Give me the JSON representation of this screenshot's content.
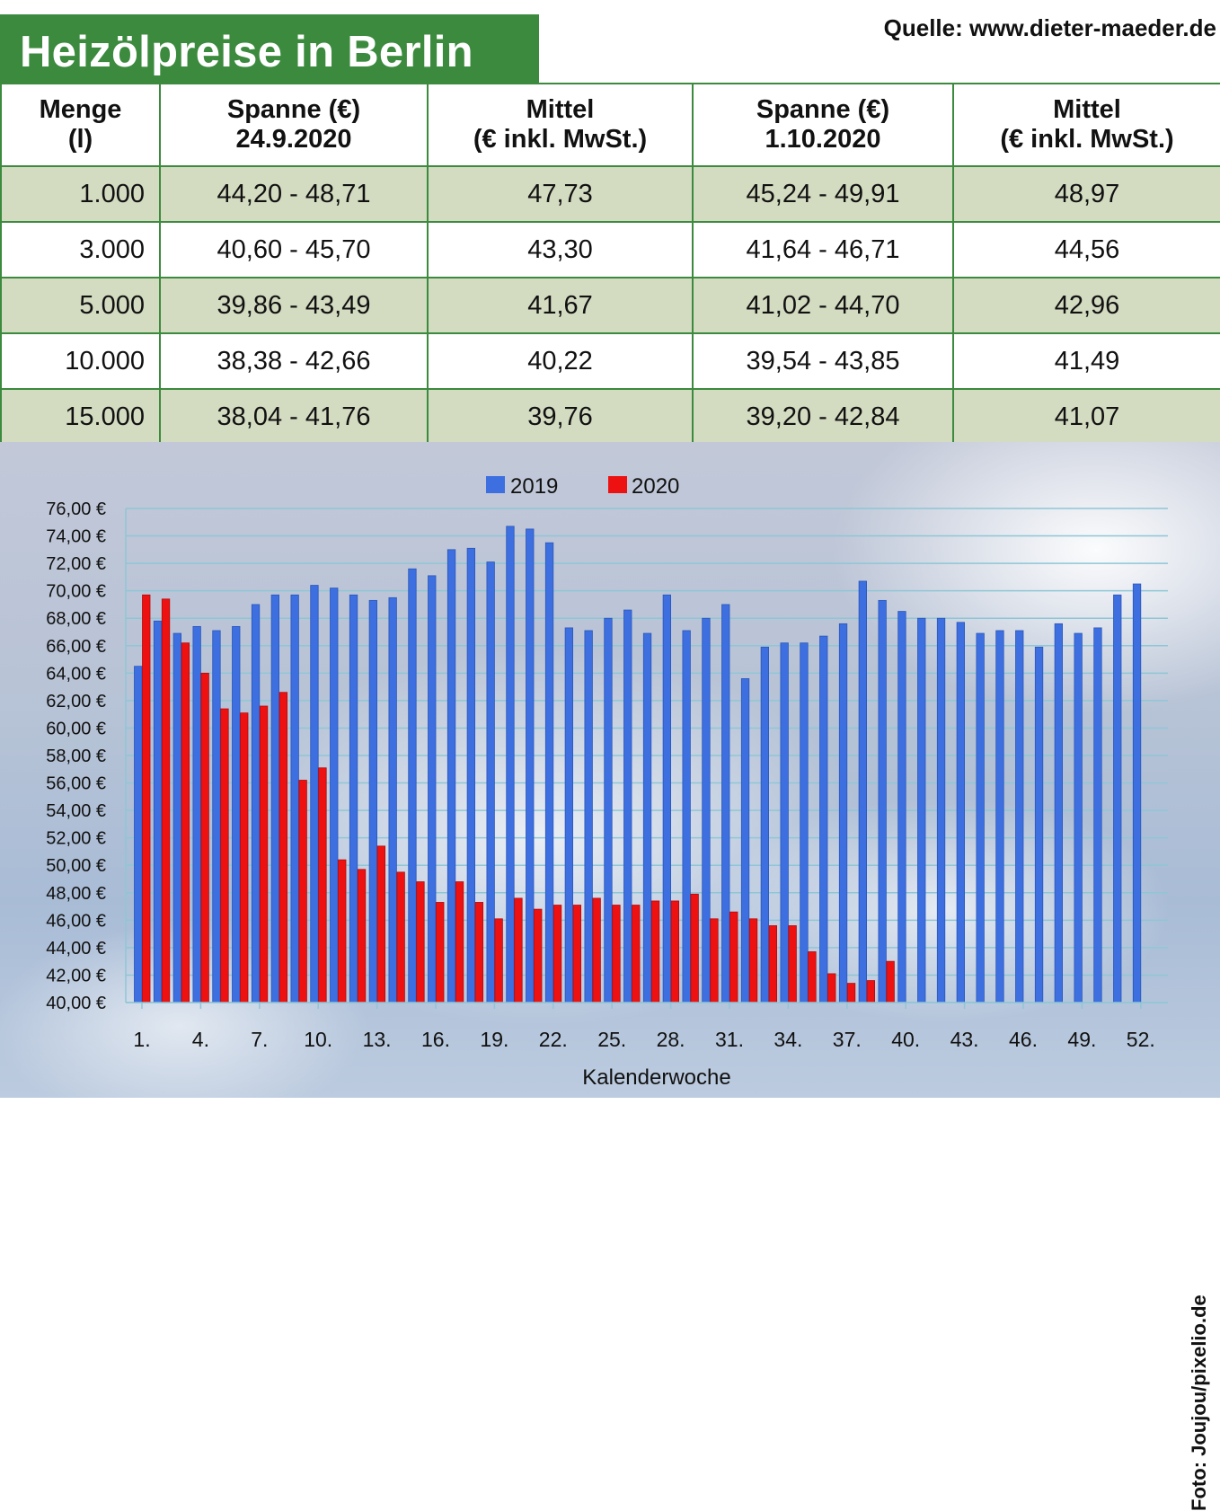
{
  "title": "Heizölpreise in Berlin",
  "source": "Quelle: www.dieter-maeder.de",
  "credit": "Foto: Joujou/pixelio.de",
  "table": {
    "headers": [
      [
        "Menge",
        "(l)"
      ],
      [
        "Spanne (€)",
        "24.9.2020"
      ],
      [
        "Mittel",
        "(€ inkl. MwSt.)"
      ],
      [
        "Spanne (€)",
        "1.10.2020"
      ],
      [
        "Mittel",
        "(€ inkl. MwSt.)"
      ]
    ],
    "rows": [
      [
        "1.000",
        "44,20 - 48,71",
        "47,73",
        "45,24 - 49,91",
        "48,97"
      ],
      [
        "3.000",
        "40,60 - 45,70",
        "43,30",
        "41,64 - 46,71",
        "44,56"
      ],
      [
        "5.000",
        "39,86 - 43,49",
        "41,67",
        "41,02 - 44,70",
        "42,96"
      ],
      [
        "10.000",
        "38,38 - 42,66",
        "40,22",
        "39,54 - 43,85",
        "41,49"
      ],
      [
        "15.000",
        "38,04 - 41,76",
        "39,76",
        "39,20 - 42,84",
        "41,07"
      ]
    ]
  },
  "colors": {
    "brand_green": "#3b8a3e",
    "row_shade": "#d3dbc1",
    "series_2019": "#3d6fe0",
    "series_2020": "#ee1111"
  },
  "chart_data": {
    "type": "bar",
    "xlabel": "Kalenderwoche",
    "ylabel": "",
    "ylim": [
      40,
      76
    ],
    "y_tick_step": 2,
    "y_tick_suffix": " €",
    "x_tick_labels": [
      "1.",
      "4.",
      "7.",
      "10.",
      "13.",
      "16.",
      "19.",
      "22.",
      "25.",
      "28.",
      "31.",
      "34.",
      "37.",
      "40.",
      "43.",
      "46.",
      "49.",
      "52."
    ],
    "x_tick_weeks": [
      1,
      4,
      7,
      10,
      13,
      16,
      19,
      22,
      25,
      28,
      31,
      34,
      37,
      40,
      43,
      46,
      49,
      52
    ],
    "legend_position": "top-center",
    "grid": true,
    "series": [
      {
        "name": "2019",
        "values": [
          64.5,
          67.8,
          66.9,
          67.4,
          67.1,
          67.4,
          69.0,
          69.7,
          69.7,
          70.4,
          70.2,
          69.7,
          69.3,
          69.5,
          71.6,
          71.1,
          73.0,
          73.1,
          72.1,
          74.7,
          74.5,
          73.5,
          67.3,
          67.1,
          68.0,
          68.6,
          66.9,
          69.7,
          67.1,
          68.0,
          69.0,
          63.6,
          65.9,
          66.2,
          66.2,
          66.7,
          67.6,
          70.7,
          69.3,
          68.5,
          68.0,
          68.0,
          67.7,
          66.9,
          67.1,
          67.1,
          65.9,
          67.6,
          66.9,
          67.3,
          69.7,
          70.5
        ]
      },
      {
        "name": "2020",
        "values": [
          69.7,
          69.4,
          66.2,
          64.0,
          61.4,
          61.1,
          61.6,
          62.6,
          56.2,
          57.1,
          50.4,
          49.7,
          51.4,
          49.5,
          48.8,
          47.3,
          48.8,
          47.3,
          46.1,
          47.6,
          46.8,
          47.1,
          47.1,
          47.6,
          47.1,
          47.1,
          47.4,
          47.4,
          47.9,
          46.1,
          46.6,
          46.1,
          45.6,
          45.6,
          43.7,
          42.1,
          41.4,
          41.6,
          43.0
        ]
      }
    ]
  }
}
